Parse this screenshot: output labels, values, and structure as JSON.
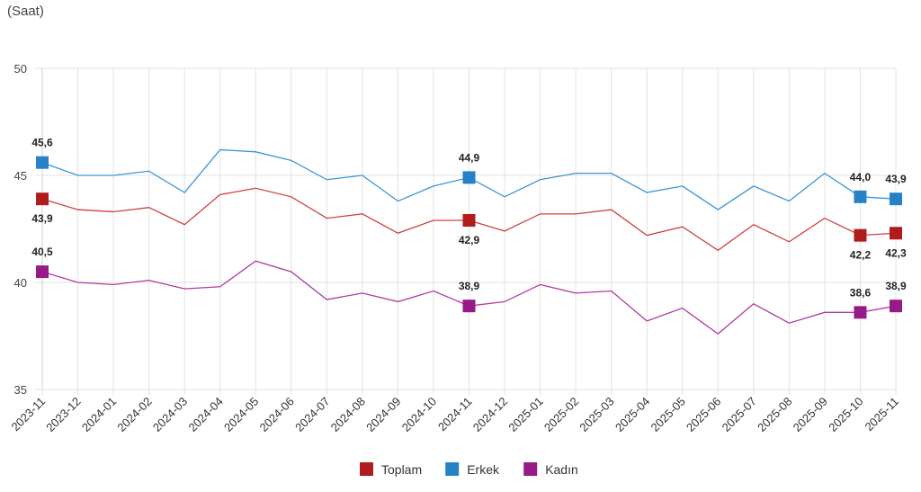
{
  "chart_data": {
    "type": "line",
    "ylabel": "(Saat)",
    "ylim": [
      35,
      50
    ],
    "yticks": [
      35,
      40,
      45,
      50
    ],
    "grid": true,
    "legend_position": "bottom-center",
    "categories": [
      "2023-11",
      "2023-12",
      "2024-01",
      "2024-02",
      "2024-03",
      "2024-04",
      "2024-05",
      "2024-06",
      "2024-07",
      "2024-08",
      "2024-09",
      "2024-10",
      "2024-11",
      "2024-12",
      "2025-01",
      "2025-02",
      "2025-03",
      "2025-04",
      "2025-05",
      "2025-06",
      "2025-07",
      "2025-08",
      "2025-09",
      "2025-10",
      "2025-11"
    ],
    "series": [
      {
        "name": "Toplam",
        "color": "#b01c1c",
        "line_color": "#d04040",
        "label_position": "below",
        "values": [
          43.9,
          43.4,
          43.3,
          43.5,
          42.7,
          44.1,
          44.4,
          44.0,
          43.0,
          43.2,
          42.3,
          42.9,
          42.9,
          42.4,
          43.2,
          43.2,
          43.4,
          42.2,
          42.6,
          41.5,
          42.7,
          41.9,
          43.0,
          42.2,
          42.3
        ],
        "labels": {
          "0": "43,9",
          "12": "42,9",
          "23": "42,2",
          "24": "42,3"
        }
      },
      {
        "name": "Erkek",
        "color": "#2781c7",
        "line_color": "#3a95d8",
        "label_position": "above",
        "values": [
          45.6,
          45.0,
          45.0,
          45.2,
          44.2,
          46.2,
          46.1,
          45.7,
          44.8,
          45.0,
          43.8,
          44.5,
          44.9,
          44.0,
          44.8,
          45.1,
          45.1,
          44.2,
          44.5,
          43.4,
          44.5,
          43.8,
          45.1,
          44.0,
          43.9
        ],
        "labels": {
          "0": "45,6",
          "12": "44,9",
          "23": "44,0",
          "24": "43,9"
        }
      },
      {
        "name": "Kadın",
        "color": "#971b87",
        "line_color": "#b03aa3",
        "label_position": "above",
        "values": [
          40.5,
          40.0,
          39.9,
          40.1,
          39.7,
          39.8,
          41.0,
          40.5,
          39.2,
          39.5,
          39.1,
          39.6,
          38.9,
          39.1,
          39.9,
          39.5,
          39.6,
          38.2,
          38.8,
          37.6,
          39.0,
          38.1,
          38.6,
          38.6,
          38.9
        ],
        "labels": {
          "0": "40,5",
          "12": "38,9",
          "23": "38,6",
          "24": "38,9"
        }
      }
    ]
  }
}
